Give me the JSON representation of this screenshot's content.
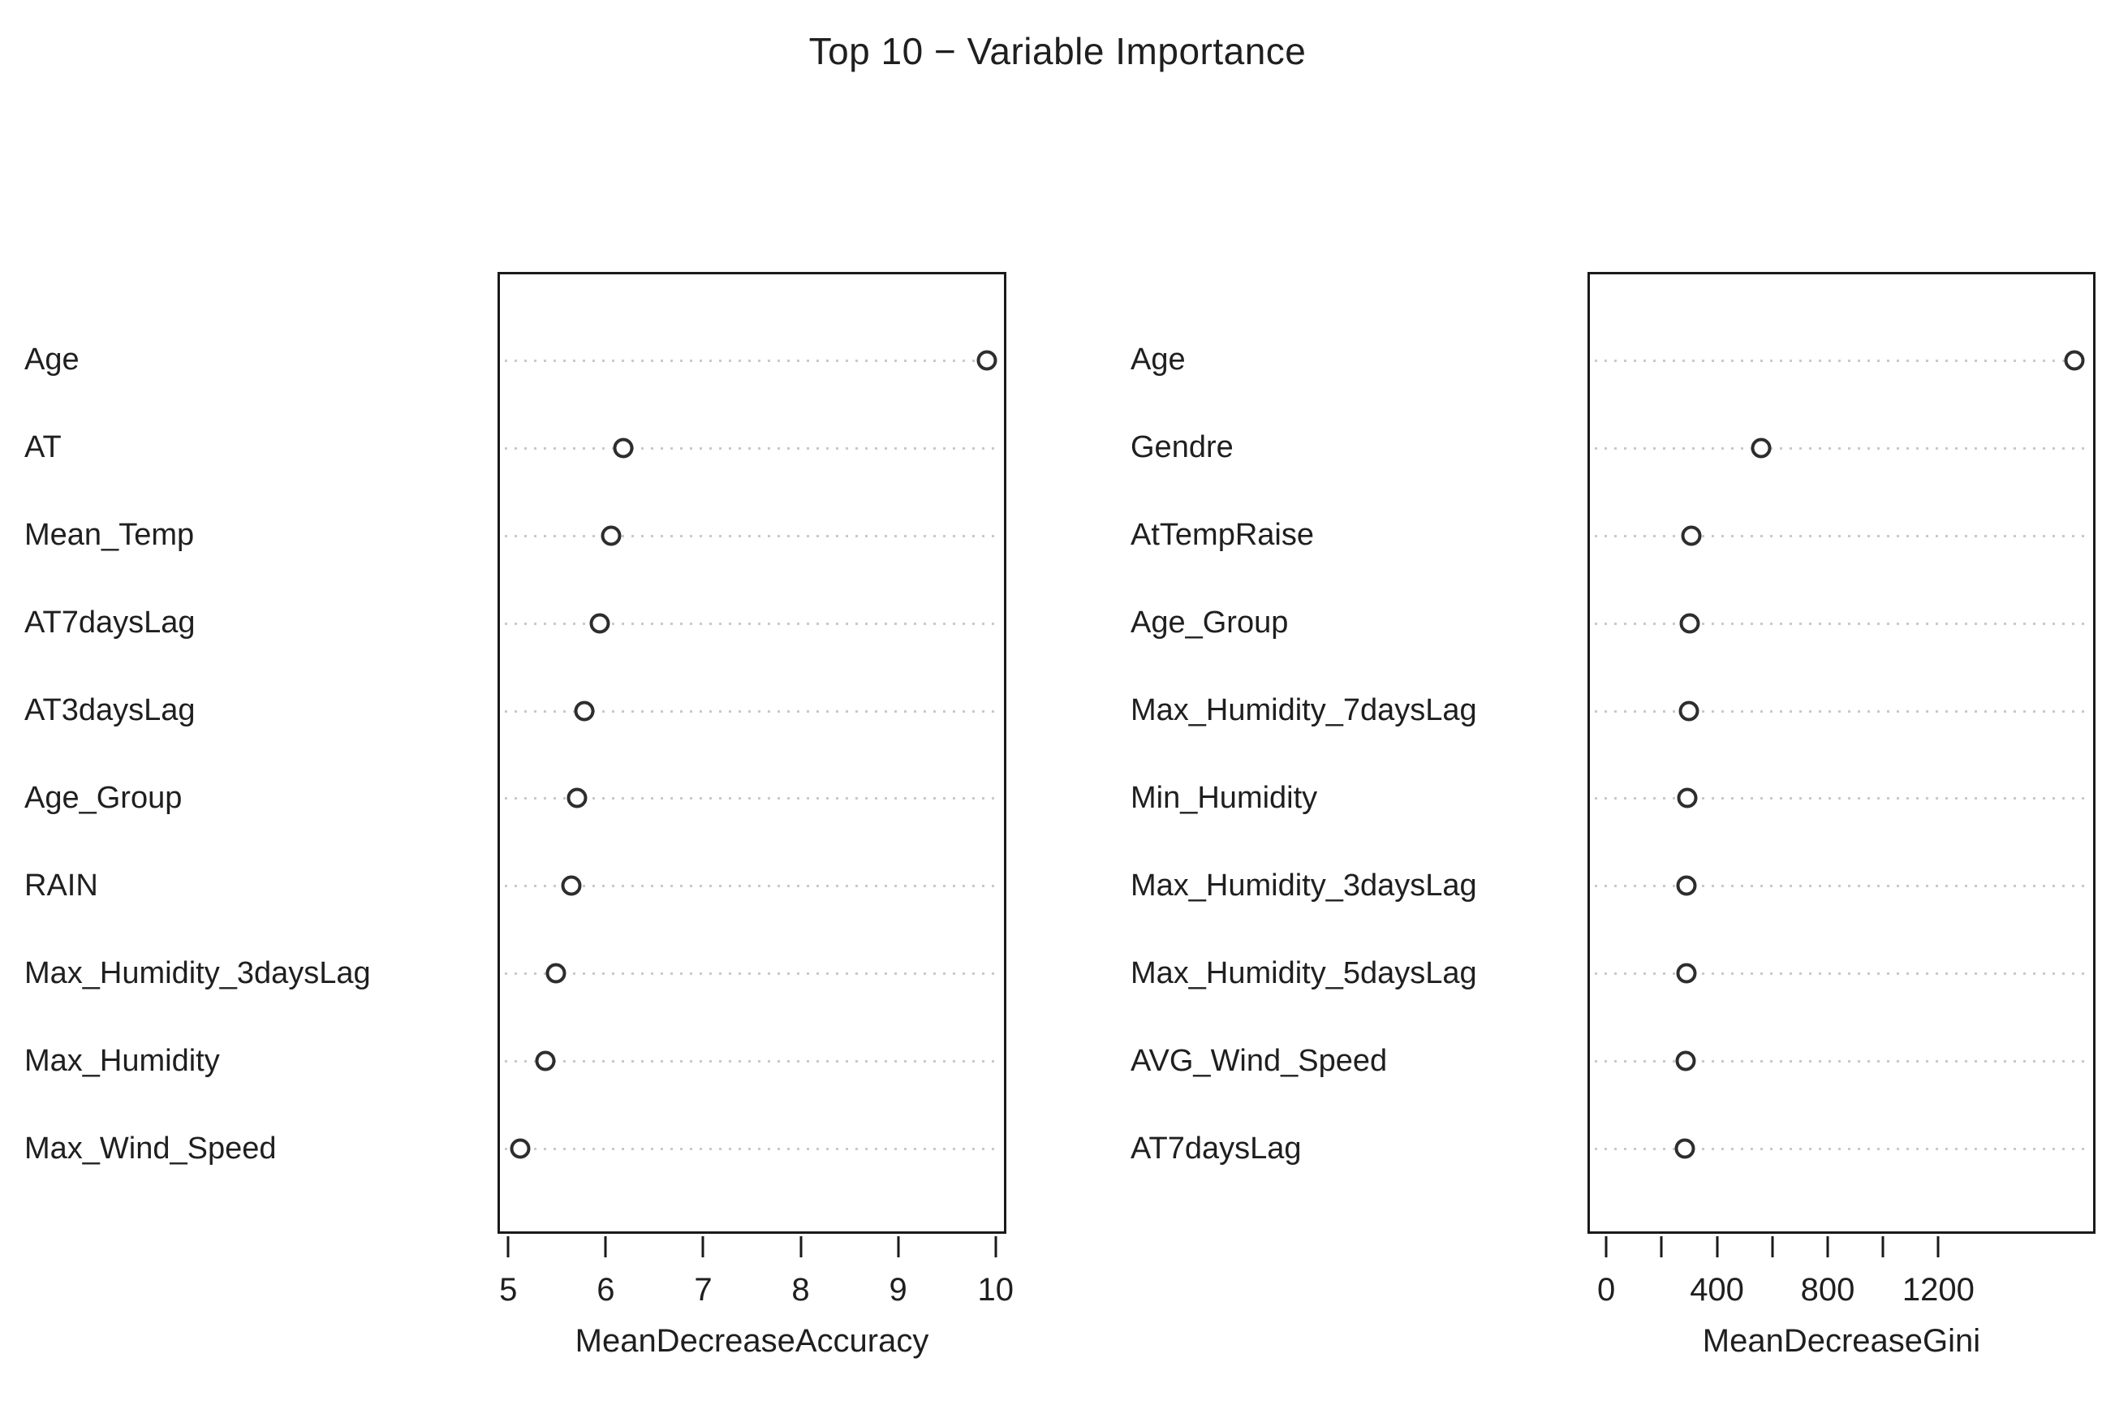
{
  "title": "Top 10 − Variable Importance",
  "chart_data": [
    {
      "type": "scatter",
      "style": "dotchart",
      "panel": "left",
      "xlabel": "MeanDecreaseAccuracy",
      "xlim": [
        4.89,
        10.11
      ],
      "grid": "dotted-leader-lines",
      "legend": "none",
      "ticks": [
        {
          "v": 5,
          "label": "5"
        },
        {
          "v": 6,
          "label": "6"
        },
        {
          "v": 7,
          "label": "7"
        },
        {
          "v": 8,
          "label": "8"
        },
        {
          "v": 9,
          "label": "9"
        },
        {
          "v": 10,
          "label": "10"
        }
      ],
      "categories": [
        "Age",
        "AT",
        "Mean_Temp",
        "AT7daysLag",
        "AT3daysLag",
        "Age_Group",
        "RAIN",
        "Max_Humidity_3daysLag",
        "Max_Humidity",
        "Max_Wind_Speed"
      ],
      "values": [
        9.93,
        6.17,
        6.04,
        5.92,
        5.76,
        5.69,
        5.63,
        5.47,
        5.36,
        5.1
      ]
    },
    {
      "type": "scatter",
      "style": "dotchart",
      "panel": "right",
      "xlabel": "MeanDecreaseGini",
      "xlim": [
        -68,
        1768
      ],
      "grid": "dotted-leader-lines",
      "legend": "none",
      "ticks": [
        {
          "v": 0,
          "label": "0"
        },
        {
          "v": 200,
          "label": ""
        },
        {
          "v": 400,
          "label": "400"
        },
        {
          "v": 600,
          "label": ""
        },
        {
          "v": 800,
          "label": "800"
        },
        {
          "v": 1000,
          "label": ""
        },
        {
          "v": 1200,
          "label": "1200"
        }
      ],
      "categories": [
        "Age",
        "Gendre",
        "AtTempRaise",
        "Age_Group",
        "Max_Humidity_7daysLag",
        "Min_Humidity",
        "Max_Humidity_3daysLag",
        "Max_Humidity_5daysLag",
        "AVG_Wind_Speed",
        "AT7daysLag"
      ],
      "values": [
        1700,
        557,
        302,
        297,
        292,
        288,
        285,
        283,
        281,
        278
      ]
    }
  ],
  "colors": {
    "background": "#ffffff",
    "text": "#1f1f1f",
    "box_border": "#1a1a1a",
    "point_stroke": "#2d2d2d",
    "leader_dots": "#c9c9c9"
  }
}
